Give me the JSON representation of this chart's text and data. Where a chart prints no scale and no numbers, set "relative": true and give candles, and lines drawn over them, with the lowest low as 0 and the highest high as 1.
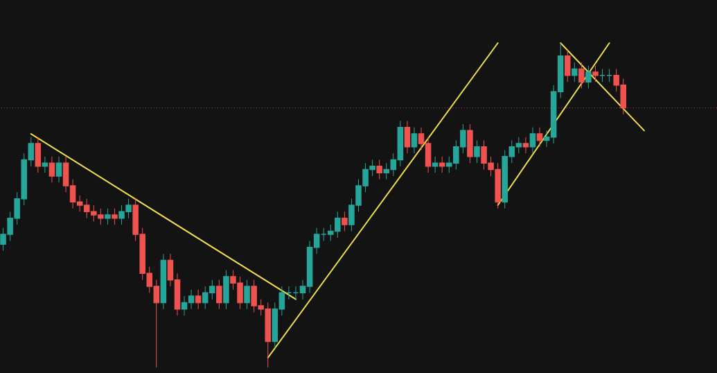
{
  "chart_data": {
    "type": "candlestick",
    "relative": true,
    "tick_labels": false,
    "grid": false,
    "categories": [
      null,
      null,
      null,
      null,
      null,
      null,
      null,
      null,
      null,
      null,
      null,
      null,
      null,
      null,
      null,
      null,
      null,
      null,
      null,
      null,
      null,
      null,
      null,
      null,
      null,
      null,
      null,
      null,
      null,
      null,
      null,
      null,
      null,
      null,
      null,
      null,
      null,
      null,
      null,
      null,
      null,
      null,
      null,
      null,
      null,
      null,
      null,
      null,
      null,
      null,
      null,
      null,
      null,
      null,
      null,
      null,
      null,
      null,
      null,
      null,
      null,
      null,
      null,
      null,
      null,
      null,
      null,
      null,
      null,
      null,
      null,
      null,
      null,
      null,
      null,
      null,
      null,
      null,
      null,
      null,
      null,
      null,
      null,
      null,
      null,
      null,
      null,
      null,
      null,
      null,
      null,
      null,
      null,
      null,
      null,
      null,
      null,
      null,
      null,
      null,
      null,
      null,
      null
    ],
    "ohlc": [
      [
        0.38,
        0.43,
        0.36,
        0.41
      ],
      [
        0.41,
        0.48,
        0.39,
        0.46
      ],
      [
        0.46,
        0.54,
        0.44,
        0.52
      ],
      [
        0.52,
        0.66,
        0.5,
        0.64
      ],
      [
        0.64,
        0.71,
        0.62,
        0.69
      ],
      [
        0.69,
        0.71,
        0.6,
        0.62
      ],
      [
        0.62,
        0.65,
        0.6,
        0.63
      ],
      [
        0.63,
        0.65,
        0.57,
        0.59
      ],
      [
        0.59,
        0.65,
        0.57,
        0.63
      ],
      [
        0.63,
        0.65,
        0.54,
        0.56
      ],
      [
        0.56,
        0.58,
        0.49,
        0.51
      ],
      [
        0.51,
        0.53,
        0.48,
        0.5
      ],
      [
        0.5,
        0.52,
        0.46,
        0.48
      ],
      [
        0.48,
        0.5,
        0.45,
        0.47
      ],
      [
        0.47,
        0.49,
        0.44,
        0.46
      ],
      [
        0.46,
        0.49,
        0.44,
        0.47
      ],
      [
        0.47,
        0.49,
        0.44,
        0.46
      ],
      [
        0.46,
        0.5,
        0.44,
        0.48
      ],
      [
        0.48,
        0.52,
        0.46,
        0.5
      ],
      [
        0.5,
        0.52,
        0.39,
        0.41
      ],
      [
        0.41,
        0.43,
        0.27,
        0.29
      ],
      [
        0.29,
        0.31,
        0.23,
        0.25
      ],
      [
        0.25,
        0.27,
        0.0,
        0.2
      ],
      [
        0.2,
        0.35,
        0.18,
        0.33
      ],
      [
        0.33,
        0.35,
        0.25,
        0.27
      ],
      [
        0.27,
        0.29,
        0.16,
        0.18
      ],
      [
        0.18,
        0.22,
        0.16,
        0.2
      ],
      [
        0.2,
        0.24,
        0.18,
        0.22
      ],
      [
        0.22,
        0.24,
        0.18,
        0.2
      ],
      [
        0.2,
        0.25,
        0.18,
        0.23
      ],
      [
        0.23,
        0.27,
        0.21,
        0.25
      ],
      [
        0.25,
        0.27,
        0.18,
        0.2
      ],
      [
        0.2,
        0.3,
        0.18,
        0.28
      ],
      [
        0.28,
        0.3,
        0.24,
        0.26
      ],
      [
        0.26,
        0.28,
        0.18,
        0.2
      ],
      [
        0.2,
        0.27,
        0.18,
        0.25
      ],
      [
        0.25,
        0.27,
        0.17,
        0.19
      ],
      [
        0.19,
        0.21,
        0.16,
        0.18
      ],
      [
        0.18,
        0.2,
        0.0,
        0.08
      ],
      [
        0.08,
        0.2,
        0.06,
        0.18
      ],
      [
        0.18,
        0.25,
        0.16,
        0.23
      ],
      [
        0.23,
        0.25,
        0.21,
        0.23
      ],
      [
        0.23,
        0.25,
        0.21,
        0.23
      ],
      [
        0.23,
        0.27,
        0.21,
        0.25
      ],
      [
        0.25,
        0.39,
        0.23,
        0.37
      ],
      [
        0.37,
        0.43,
        0.35,
        0.41
      ],
      [
        0.41,
        0.43,
        0.39,
        0.41
      ],
      [
        0.41,
        0.44,
        0.39,
        0.42
      ],
      [
        0.42,
        0.48,
        0.4,
        0.46
      ],
      [
        0.46,
        0.48,
        0.42,
        0.44
      ],
      [
        0.44,
        0.52,
        0.42,
        0.5
      ],
      [
        0.5,
        0.58,
        0.48,
        0.56
      ],
      [
        0.56,
        0.63,
        0.54,
        0.61
      ],
      [
        0.61,
        0.64,
        0.59,
        0.62
      ],
      [
        0.62,
        0.64,
        0.58,
        0.6
      ],
      [
        0.6,
        0.63,
        0.58,
        0.61
      ],
      [
        0.61,
        0.66,
        0.59,
        0.64
      ],
      [
        0.64,
        0.76,
        0.62,
        0.74
      ],
      [
        0.74,
        0.76,
        0.66,
        0.68
      ],
      [
        0.68,
        0.74,
        0.66,
        0.72
      ],
      [
        0.72,
        0.74,
        0.67,
        0.69
      ],
      [
        0.69,
        0.71,
        0.6,
        0.62
      ],
      [
        0.62,
        0.65,
        0.6,
        0.63
      ],
      [
        0.63,
        0.65,
        0.6,
        0.62
      ],
      [
        0.62,
        0.65,
        0.6,
        0.63
      ],
      [
        0.63,
        0.7,
        0.61,
        0.68
      ],
      [
        0.68,
        0.75,
        0.66,
        0.73
      ],
      [
        0.73,
        0.75,
        0.63,
        0.65
      ],
      [
        0.65,
        0.7,
        0.63,
        0.68
      ],
      [
        0.68,
        0.7,
        0.61,
        0.63
      ],
      [
        0.63,
        0.65,
        0.59,
        0.61
      ],
      [
        0.61,
        0.63,
        0.49,
        0.51
      ],
      [
        0.51,
        0.67,
        0.49,
        0.65
      ],
      [
        0.65,
        0.7,
        0.63,
        0.68
      ],
      [
        0.68,
        0.71,
        0.66,
        0.69
      ],
      [
        0.69,
        0.71,
        0.66,
        0.68
      ],
      [
        0.68,
        0.74,
        0.66,
        0.72
      ],
      [
        0.72,
        0.74,
        0.68,
        0.7
      ],
      [
        0.7,
        0.73,
        0.68,
        0.71
      ],
      [
        0.71,
        0.87,
        0.69,
        0.85
      ],
      [
        0.85,
        1.0,
        0.83,
        0.96
      ],
      [
        0.96,
        0.98,
        0.88,
        0.9
      ],
      [
        0.9,
        0.94,
        0.88,
        0.92
      ],
      [
        0.92,
        0.94,
        0.86,
        0.88
      ],
      [
        0.88,
        0.93,
        0.86,
        0.91
      ],
      [
        0.91,
        0.93,
        0.88,
        0.9
      ],
      [
        0.9,
        0.92,
        0.88,
        0.9
      ],
      [
        0.9,
        0.92,
        0.88,
        0.9
      ],
      [
        0.9,
        0.92,
        0.85,
        0.87
      ],
      [
        0.87,
        0.89,
        0.78,
        0.8
      ],
      null,
      null,
      null,
      null,
      null,
      null,
      null,
      null,
      null,
      null,
      null,
      null,
      null
    ],
    "series": [
      {
        "type": "line",
        "color": "#f0e04a",
        "values": [
          null,
          null,
          null,
          null,
          0.72,
          null,
          null,
          null,
          null,
          null,
          null,
          null,
          null,
          null,
          null,
          null,
          null,
          null,
          null,
          null,
          null,
          null,
          null,
          null,
          null,
          null,
          null,
          null,
          null,
          null,
          null,
          null,
          null,
          null,
          null,
          null,
          null,
          null,
          null,
          null,
          null,
          null,
          0.21,
          null,
          null,
          null,
          null,
          null,
          null,
          null,
          null,
          null,
          null,
          null,
          null,
          null,
          null,
          null,
          null,
          null,
          null,
          null,
          null,
          null,
          null,
          null,
          null,
          null,
          null,
          null,
          null,
          null,
          null,
          null,
          null,
          null,
          null,
          null,
          null,
          null,
          null,
          null,
          null,
          null,
          null,
          null,
          null,
          null,
          null,
          null,
          null,
          null,
          null,
          null,
          null,
          null,
          null,
          null,
          null,
          null,
          null,
          null,
          null
        ]
      },
      {
        "type": "line",
        "color": "#f0e04a",
        "values": [
          null,
          null,
          null,
          null,
          null,
          null,
          null,
          null,
          null,
          null,
          null,
          null,
          null,
          null,
          null,
          null,
          null,
          null,
          null,
          null,
          null,
          null,
          null,
          null,
          null,
          null,
          null,
          null,
          null,
          null,
          null,
          null,
          null,
          null,
          null,
          null,
          null,
          null,
          0.03,
          null,
          null,
          null,
          null,
          null,
          null,
          null,
          null,
          null,
          null,
          null,
          null,
          null,
          null,
          null,
          null,
          null,
          null,
          null,
          null,
          null,
          null,
          null,
          null,
          null,
          null,
          null,
          null,
          null,
          null,
          null,
          null,
          1.0,
          null,
          null,
          null,
          null,
          null,
          null,
          null,
          null,
          null,
          null,
          null,
          null,
          null,
          null,
          null,
          null,
          null,
          null,
          null,
          null,
          null,
          null,
          null,
          null,
          null,
          null,
          null,
          null,
          null,
          null,
          null
        ]
      },
      {
        "type": "line",
        "color": "#f0e04a",
        "values": [
          null,
          null,
          null,
          null,
          null,
          null,
          null,
          null,
          null,
          null,
          null,
          null,
          null,
          null,
          null,
          null,
          null,
          null,
          null,
          null,
          null,
          null,
          null,
          null,
          null,
          null,
          null,
          null,
          null,
          null,
          null,
          null,
          null,
          null,
          null,
          null,
          null,
          null,
          null,
          null,
          null,
          null,
          null,
          null,
          null,
          null,
          null,
          null,
          null,
          null,
          null,
          null,
          null,
          null,
          null,
          null,
          null,
          null,
          null,
          null,
          null,
          null,
          null,
          null,
          null,
          null,
          null,
          null,
          null,
          null,
          null,
          0.5,
          null,
          null,
          null,
          null,
          null,
          null,
          null,
          null,
          null,
          null,
          null,
          null,
          null,
          null,
          null,
          1.0,
          null,
          null,
          null,
          null,
          null,
          null,
          null,
          null,
          null,
          null,
          null,
          null,
          null,
          null,
          null
        ]
      },
      {
        "type": "line",
        "color": "#f0e04a",
        "values": [
          null,
          null,
          null,
          null,
          null,
          null,
          null,
          null,
          null,
          null,
          null,
          null,
          null,
          null,
          null,
          null,
          null,
          null,
          null,
          null,
          null,
          null,
          null,
          null,
          null,
          null,
          null,
          null,
          null,
          null,
          null,
          null,
          null,
          null,
          null,
          null,
          null,
          null,
          null,
          null,
          null,
          null,
          null,
          null,
          null,
          null,
          null,
          null,
          null,
          null,
          null,
          null,
          null,
          null,
          null,
          null,
          null,
          null,
          null,
          null,
          null,
          null,
          null,
          null,
          null,
          null,
          null,
          null,
          null,
          null,
          null,
          null,
          null,
          null,
          null,
          null,
          null,
          null,
          null,
          null,
          1.0,
          null,
          null,
          null,
          null,
          null,
          null,
          null,
          null,
          null,
          null,
          null,
          0.73,
          null,
          null,
          null,
          null,
          null,
          null,
          null,
          null,
          null,
          null
        ]
      }
    ],
    "ref_lines": [
      {
        "axis": "y",
        "value": 0.8,
        "color": "#c04848",
        "line_style": "dotted"
      }
    ]
  }
}
